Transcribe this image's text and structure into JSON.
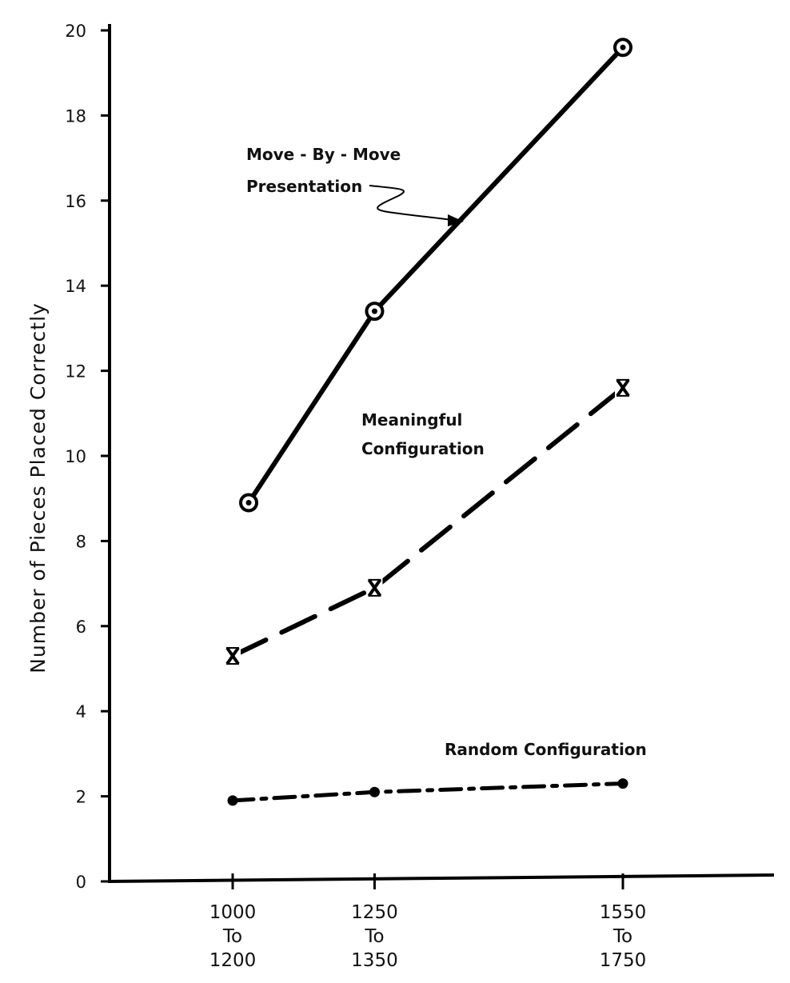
{
  "chart_data": {
    "type": "line",
    "ylabel": "Number of Pieces Placed Correctly",
    "xlabel": "",
    "ylim": [
      0,
      20
    ],
    "yticks": [
      "0",
      "2",
      "4",
      "6",
      "8",
      "10",
      "12",
      "14",
      "16",
      "18",
      "20"
    ],
    "categories": [
      {
        "lines": [
          "1000",
          "To",
          "1200"
        ]
      },
      {
        "lines": [
          "1250",
          "To",
          "1350"
        ]
      },
      {
        "lines": [
          "1550",
          "To",
          "1750"
        ]
      }
    ],
    "x": [
      1100,
      1300,
      1650
    ],
    "series": [
      {
        "name": "Move-By-Move Presentation",
        "label_lines": [
          "Move - By - Move",
          "Presentation"
        ],
        "marker": "circle",
        "line_style": "solid",
        "values": [
          8.9,
          13.4,
          19.6
        ]
      },
      {
        "name": "Meaningful Configuration",
        "label_lines": [
          "Meaningful",
          "Configuration"
        ],
        "marker": "x",
        "line_style": "dashed",
        "values": [
          5.3,
          6.9,
          11.6
        ]
      },
      {
        "name": "Random Configuration",
        "label_lines": [
          "Random  Configuration"
        ],
        "marker": "dot",
        "line_style": "dash-dot",
        "values": [
          1.9,
          2.1,
          2.3
        ]
      }
    ]
  }
}
